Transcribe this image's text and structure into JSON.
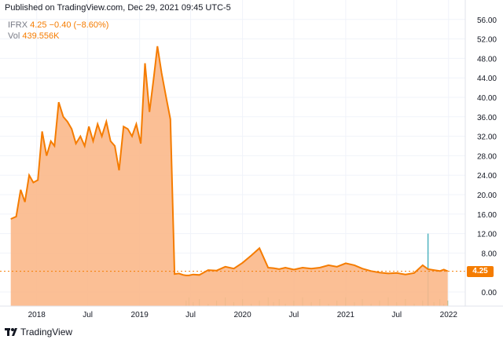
{
  "header": {
    "published": "Published on TradingView.com, Dec 29, 2021 09:45 UTC-5"
  },
  "legend": {
    "symbol": "IFRX",
    "price": "4.25",
    "change": "−0.40 (−8.60%)",
    "vol_label": "Vol",
    "vol_value": "439.556K"
  },
  "brand": {
    "name": "TradingView"
  },
  "price_tag": "4.25",
  "colors": {
    "line": "#f57c00",
    "fill": "#fbb88a",
    "volume": "#7fbf8f",
    "volume_spike": "#4fb3bf"
  },
  "chart_data": {
    "type": "area",
    "title": "",
    "xlabel": "",
    "ylabel": "",
    "ylim": [
      -4,
      56
    ],
    "y_ticks": [
      "56.00",
      "52.00",
      "48.00",
      "44.00",
      "40.00",
      "36.00",
      "32.00",
      "28.00",
      "24.00",
      "20.00",
      "16.00",
      "12.00",
      "8.00",
      "0.00"
    ],
    "x_ticks": [
      "2018",
      "Jul",
      "2019",
      "Jul",
      "2020",
      "Jul",
      "2021",
      "Jul",
      "2022"
    ],
    "x_tick_dates": [
      "2018-01-01",
      "2018-07-01",
      "2019-01-01",
      "2019-07-01",
      "2020-01-01",
      "2020-07-01",
      "2021-01-01",
      "2021-07-01",
      "2022-01-01"
    ],
    "x_range": [
      "2017-09-15",
      "2022-01-10"
    ],
    "last_price": 4.25,
    "grid": true,
    "series": [
      {
        "x": [
          "2017-10-01",
          "2017-10-20",
          "2017-11-05",
          "2017-11-20",
          "2017-12-05",
          "2017-12-20",
          "2018-01-05",
          "2018-01-20",
          "2018-02-05",
          "2018-02-20",
          "2018-03-05",
          "2018-03-20",
          "2018-04-05",
          "2018-04-20",
          "2018-05-05",
          "2018-05-20",
          "2018-06-05",
          "2018-06-20",
          "2018-07-05",
          "2018-07-20",
          "2018-08-05",
          "2018-08-20",
          "2018-09-05",
          "2018-09-20",
          "2018-10-05",
          "2018-10-20",
          "2018-11-05",
          "2018-11-20",
          "2018-12-05",
          "2018-12-20",
          "2019-01-05",
          "2019-01-20",
          "2019-02-05",
          "2019-02-20",
          "2019-03-05",
          "2019-03-20",
          "2019-04-05",
          "2019-04-20",
          "2019-05-05",
          "2019-05-20",
          "2019-06-05",
          "2019-06-15",
          "2019-06-25",
          "2019-07-10",
          "2019-08-01",
          "2019-09-01",
          "2019-10-01",
          "2019-11-01",
          "2019-12-01",
          "2020-01-01",
          "2020-02-01",
          "2020-03-01",
          "2020-04-01",
          "2020-04-20",
          "2020-05-10",
          "2020-06-01",
          "2020-07-01",
          "2020-08-01",
          "2020-09-01",
          "2020-10-01",
          "2020-11-01",
          "2020-12-01",
          "2021-01-01",
          "2021-02-01",
          "2021-03-01",
          "2021-04-01",
          "2021-05-01",
          "2021-06-01",
          "2021-07-01",
          "2021-08-01",
          "2021-09-01",
          "2021-10-01",
          "2021-10-20",
          "2021-11-10",
          "2021-12-01",
          "2021-12-15",
          "2021-12-29"
        ],
        "values": [
          15.0,
          15.5,
          21.0,
          18.5,
          24.0,
          22.5,
          23.0,
          33.0,
          28.0,
          31.0,
          30.0,
          39.0,
          36.0,
          35.0,
          33.5,
          30.5,
          32.0,
          30.0,
          34.0,
          31.0,
          34.5,
          32.0,
          35.0,
          31.0,
          30.0,
          25.0,
          34.0,
          33.5,
          32.0,
          34.5,
          30.5,
          47.0,
          37.0,
          44.0,
          50.5,
          45.0,
          40.0,
          35.5,
          3.7,
          3.8,
          3.5,
          3.4,
          3.4,
          3.6,
          3.5,
          4.5,
          4.4,
          5.2,
          4.8,
          6.0,
          7.5,
          9.0,
          5.0,
          4.9,
          4.7,
          5.0,
          4.6,
          5.0,
          4.8,
          5.0,
          5.5,
          5.2,
          5.9,
          5.5,
          4.8,
          4.3,
          4.0,
          3.8,
          3.9,
          3.6,
          3.9,
          5.5,
          4.7,
          4.5,
          4.3,
          4.6,
          4.25
        ]
      }
    ],
    "volume_spike": {
      "x": "2021-10-20",
      "value": 12.0
    }
  }
}
